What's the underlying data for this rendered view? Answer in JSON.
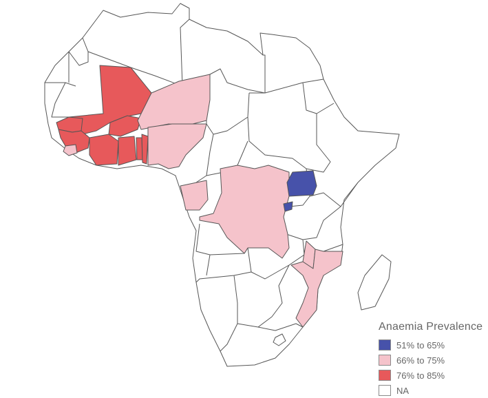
{
  "legend": {
    "title": "Anaemia Prevalence",
    "categories": [
      {
        "key": "c1",
        "label": "51% to 65%",
        "color": "#4752aa"
      },
      {
        "key": "c2",
        "label": "66% to 75%",
        "color": "#f5c3cb"
      },
      {
        "key": "c3",
        "label": "76% to 85%",
        "color": "#e7595b"
      },
      {
        "key": "na",
        "label": "NA",
        "color": "#ffffff"
      }
    ]
  },
  "regions": [
    {
      "name": "Mali",
      "category": "c3"
    },
    {
      "name": "Burkina Faso",
      "category": "c3"
    },
    {
      "name": "Ghana",
      "category": "c3"
    },
    {
      "name": "Ivory Coast",
      "category": "c3"
    },
    {
      "name": "Guinea",
      "category": "c3"
    },
    {
      "name": "Senegal",
      "category": "c3"
    },
    {
      "name": "Togo",
      "category": "c3"
    },
    {
      "name": "Benin",
      "category": "c3"
    },
    {
      "name": "Niger",
      "category": "c2"
    },
    {
      "name": "Nigeria",
      "category": "c2"
    },
    {
      "name": "Sierra Leone",
      "category": "c2"
    },
    {
      "name": "Gabon",
      "category": "c2"
    },
    {
      "name": "DR Congo",
      "category": "c2"
    },
    {
      "name": "Mozambique",
      "category": "c2"
    },
    {
      "name": "Malawi",
      "category": "c2"
    },
    {
      "name": "Uganda",
      "category": "c1"
    },
    {
      "name": "Rwanda",
      "category": "c1"
    }
  ]
}
